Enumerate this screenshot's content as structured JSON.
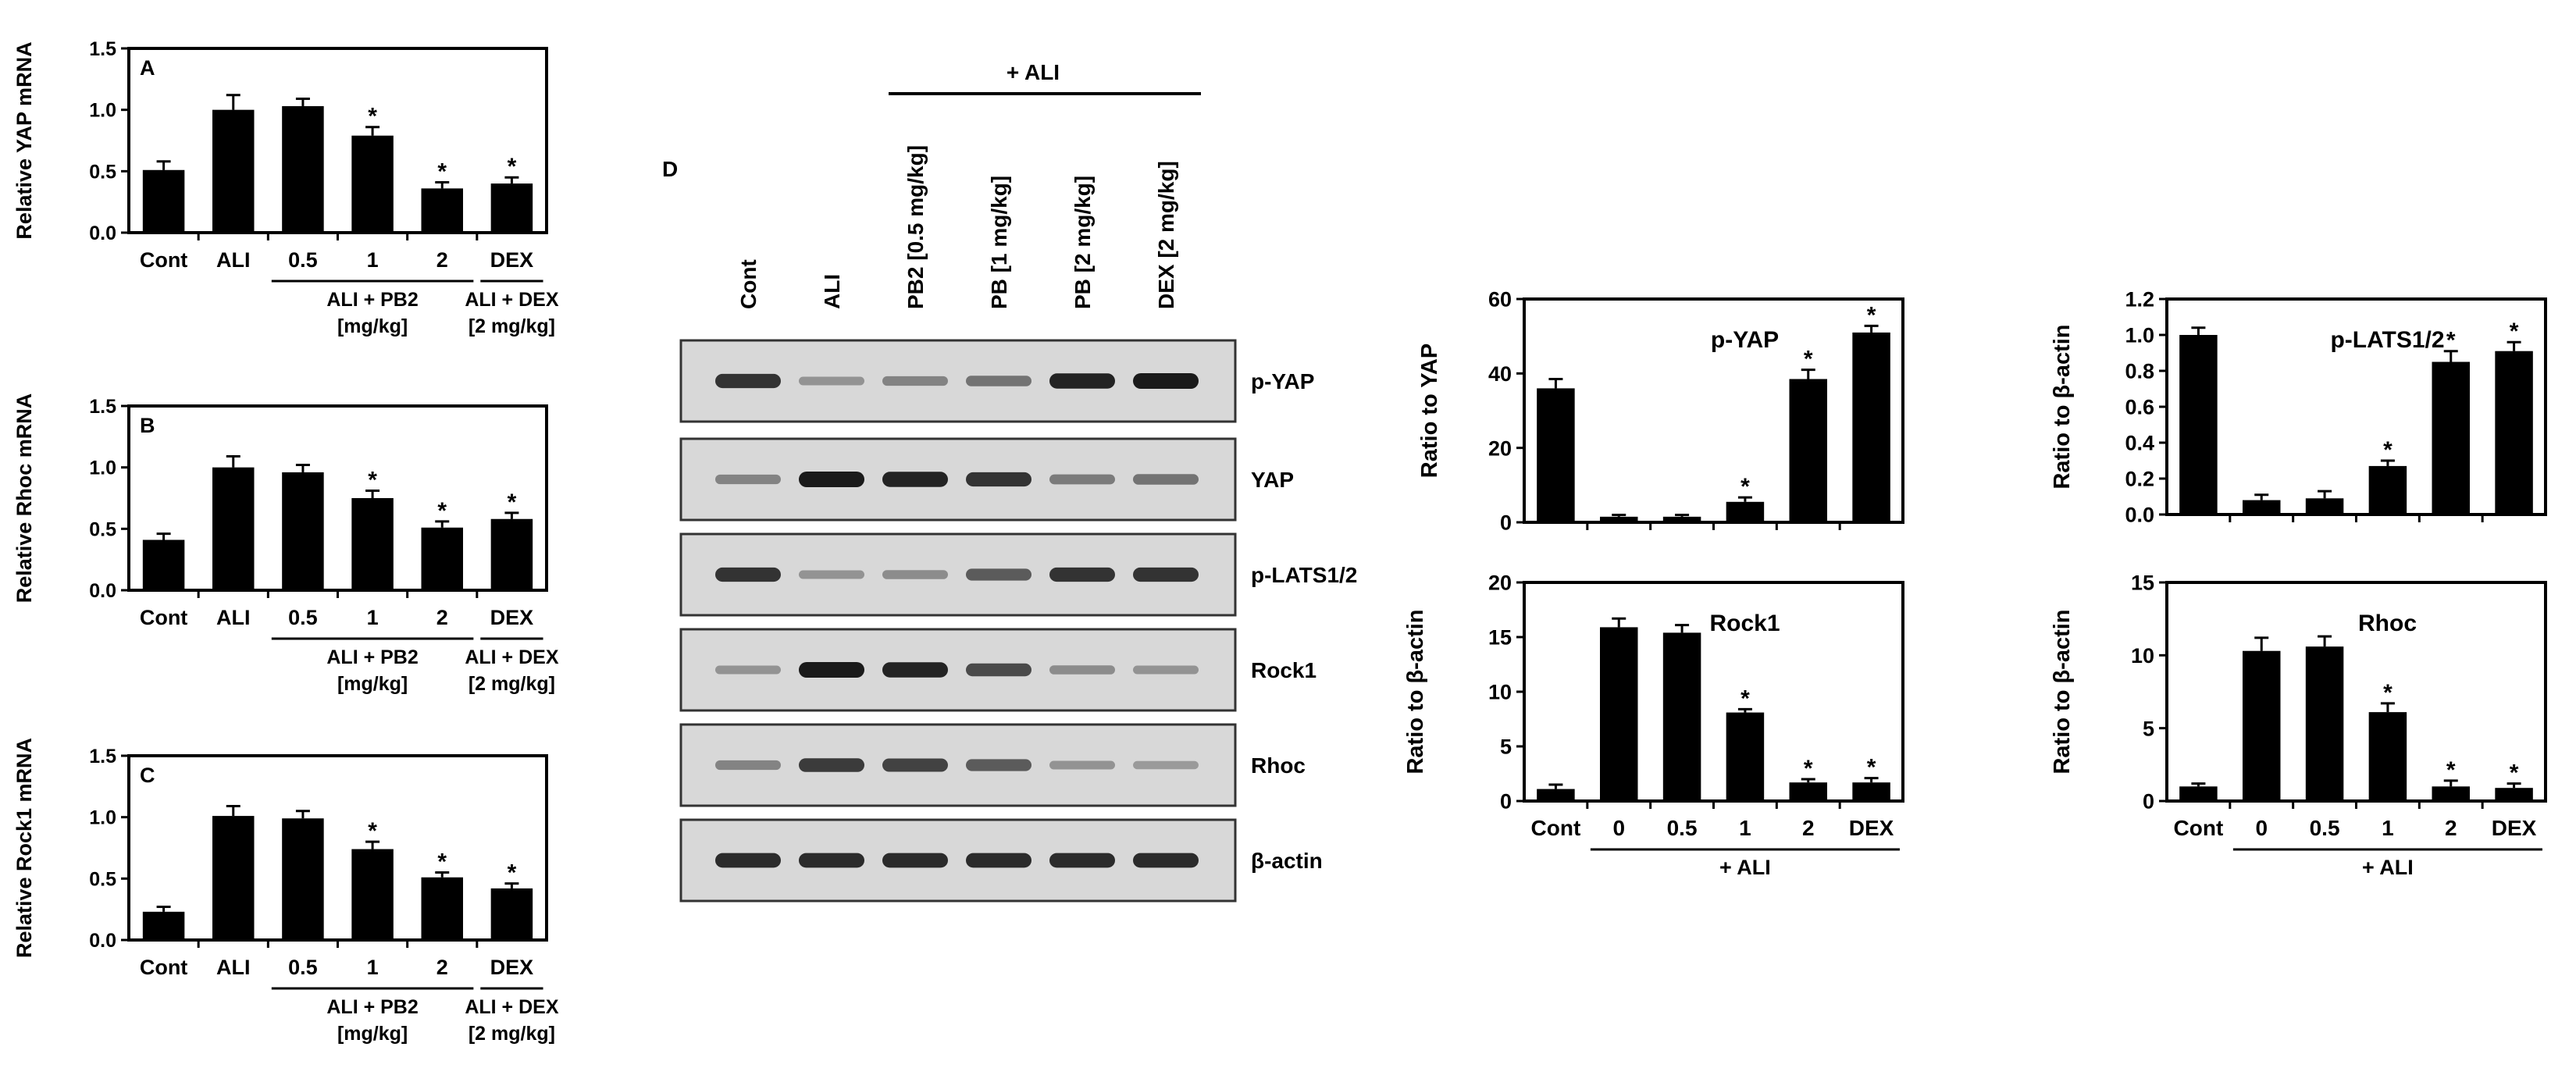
{
  "colors": {
    "bar": "#000000",
    "axis": "#000000",
    "blot_bg": "#d8d8d8",
    "band": "#1a1a1a"
  },
  "panel_d_label": "D",
  "blot": {
    "group_label": "+ ALI",
    "lanes": [
      "Cont",
      "ALI",
      "PB2 [0.5 mg/kg]",
      "PB [1 mg/kg]",
      "PB [2 mg/kg]",
      "DEX [2 mg/kg]"
    ],
    "rows": [
      {
        "label": "p-YAP",
        "intensity": [
          0.85,
          0.25,
          0.35,
          0.45,
          0.95,
          1.0
        ]
      },
      {
        "label": "YAP",
        "intensity": [
          0.35,
          1.0,
          0.95,
          0.85,
          0.4,
          0.45
        ]
      },
      {
        "label": "p-LATS1/2",
        "intensity": [
          0.85,
          0.25,
          0.3,
          0.6,
          0.85,
          0.85
        ]
      },
      {
        "label": "Rock1",
        "intensity": [
          0.25,
          1.0,
          0.95,
          0.7,
          0.3,
          0.25
        ]
      },
      {
        "label": "Rhoc",
        "intensity": [
          0.35,
          0.8,
          0.75,
          0.6,
          0.25,
          0.2
        ]
      },
      {
        "label": "β-actin",
        "intensity": [
          0.9,
          0.9,
          0.9,
          0.9,
          0.9,
          0.9
        ]
      }
    ]
  },
  "chart_data": [
    {
      "id": "A",
      "type": "bar",
      "panel_label": "A",
      "ylabel": "Relative YAP mRNA",
      "ylim": [
        0,
        1.5
      ],
      "yticks": [
        "0.0",
        "0.5",
        "1.0",
        "1.5"
      ],
      "categories": [
        "Cont",
        "ALI",
        "0.5",
        "1",
        "2",
        "DEX"
      ],
      "values": [
        0.51,
        1.0,
        1.03,
        0.79,
        0.36,
        0.4
      ],
      "errors": [
        0.07,
        0.12,
        0.06,
        0.07,
        0.05,
        0.05
      ],
      "significant": [
        false,
        false,
        false,
        true,
        true,
        true
      ],
      "groups": [
        {
          "line1": "ALI + PB2",
          "line2": "[mg/kg]",
          "from": 2,
          "to": 4
        },
        {
          "line1": "ALI + DEX",
          "line2": "[2 mg/kg]",
          "from": 5,
          "to": 5
        }
      ]
    },
    {
      "id": "B",
      "type": "bar",
      "panel_label": "B",
      "ylabel": "Relative Rhoc mRNA",
      "ylim": [
        0,
        1.5
      ],
      "yticks": [
        "0.0",
        "0.5",
        "1.0",
        "1.5"
      ],
      "categories": [
        "Cont",
        "ALI",
        "0.5",
        "1",
        "2",
        "DEX"
      ],
      "values": [
        0.41,
        1.0,
        0.96,
        0.75,
        0.51,
        0.58
      ],
      "errors": [
        0.05,
        0.09,
        0.06,
        0.06,
        0.05,
        0.05
      ],
      "significant": [
        false,
        false,
        false,
        true,
        true,
        true
      ],
      "groups": [
        {
          "line1": "ALI + PB2",
          "line2": "[mg/kg]",
          "from": 2,
          "to": 4
        },
        {
          "line1": "ALI + DEX",
          "line2": "[2 mg/kg]",
          "from": 5,
          "to": 5
        }
      ]
    },
    {
      "id": "C",
      "type": "bar",
      "panel_label": "C",
      "ylabel": "Relative Rock1 mRNA",
      "ylim": [
        0,
        1.5
      ],
      "yticks": [
        "0.0",
        "0.5",
        "1.0",
        "1.5"
      ],
      "categories": [
        "Cont",
        "ALI",
        "0.5",
        "1",
        "2",
        "DEX"
      ],
      "values": [
        0.23,
        1.01,
        0.99,
        0.74,
        0.51,
        0.42
      ],
      "errors": [
        0.04,
        0.08,
        0.06,
        0.06,
        0.04,
        0.04
      ],
      "significant": [
        false,
        false,
        false,
        true,
        true,
        true
      ],
      "groups": [
        {
          "line1": "ALI + PB2",
          "line2": "[mg/kg]",
          "from": 2,
          "to": 4
        },
        {
          "line1": "ALI + DEX",
          "line2": "[2 mg/kg]",
          "from": 5,
          "to": 5
        }
      ]
    },
    {
      "id": "pYAP",
      "type": "bar",
      "panel_label": "p-YAP",
      "ylabel": "Ratio to YAP",
      "ylim": [
        0,
        60
      ],
      "yticks": [
        "0",
        "20",
        "40",
        "60"
      ],
      "categories": [
        "",
        "",
        "",
        "",
        "",
        ""
      ],
      "values": [
        36,
        1.5,
        1.5,
        5.5,
        38.5,
        51
      ],
      "errors": [
        2.5,
        0.5,
        0.5,
        1.2,
        2.5,
        1.8
      ],
      "significant": [
        false,
        false,
        false,
        true,
        true,
        true
      ],
      "groups": []
    },
    {
      "id": "pLATS",
      "type": "bar",
      "panel_label": "p-LATS1/2",
      "ylabel": "Ratio to β-actin",
      "ylim": [
        0,
        1.2
      ],
      "yticks": [
        "0.0",
        "0.2",
        "0.4",
        "0.6",
        "0.8",
        "1.0",
        "1.2"
      ],
      "categories": [
        "",
        "",
        "",
        "",
        "",
        ""
      ],
      "values": [
        1.0,
        0.08,
        0.09,
        0.27,
        0.85,
        0.91
      ],
      "errors": [
        0.04,
        0.03,
        0.04,
        0.03,
        0.06,
        0.05
      ],
      "significant": [
        false,
        false,
        false,
        true,
        true,
        true
      ],
      "groups": []
    },
    {
      "id": "Rock1",
      "type": "bar",
      "panel_label": "Rock1",
      "ylabel": "Ratio to β-actin",
      "ylim": [
        0,
        20
      ],
      "yticks": [
        "0",
        "5",
        "10",
        "15",
        "20"
      ],
      "categories": [
        "Cont",
        "0",
        "0.5",
        "1",
        "2",
        "DEX"
      ],
      "values": [
        1.1,
        15.9,
        15.4,
        8.1,
        1.7,
        1.7
      ],
      "errors": [
        0.4,
        0.8,
        0.7,
        0.3,
        0.3,
        0.4
      ],
      "significant": [
        false,
        false,
        false,
        true,
        true,
        true
      ],
      "groups": [
        {
          "line1": "+ ALI",
          "line2": "",
          "from": 1,
          "to": 5
        }
      ]
    },
    {
      "id": "Rhoc",
      "type": "bar",
      "panel_label": "Rhoc",
      "ylabel": "Ratio to β-actin",
      "ylim": [
        0,
        15
      ],
      "yticks": [
        "0",
        "5",
        "10",
        "15"
      ],
      "categories": [
        "Cont",
        "0",
        "0.5",
        "1",
        "2",
        "DEX"
      ],
      "values": [
        1.0,
        10.3,
        10.6,
        6.1,
        1.0,
        0.9
      ],
      "errors": [
        0.2,
        0.9,
        0.7,
        0.6,
        0.4,
        0.3
      ],
      "significant": [
        false,
        false,
        false,
        true,
        true,
        true
      ],
      "groups": [
        {
          "line1": "+ ALI",
          "line2": "",
          "from": 1,
          "to": 5
        }
      ]
    }
  ]
}
